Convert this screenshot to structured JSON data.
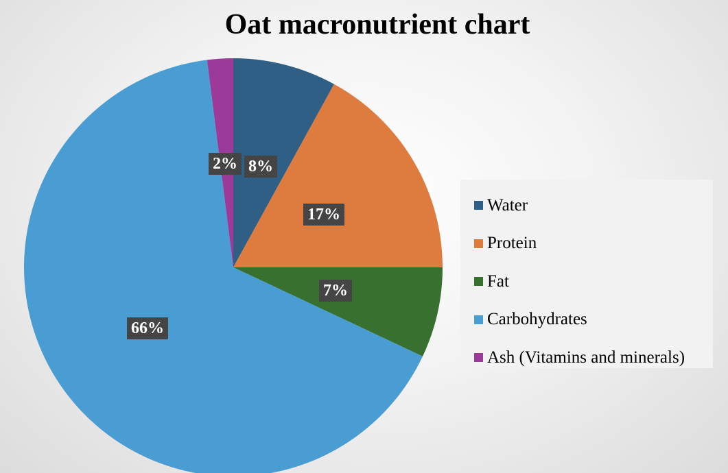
{
  "title": "Oat macronutrient chart",
  "chart_data": {
    "type": "pie",
    "title": "Oat macronutrient chart",
    "legend_position": "right",
    "start_angle_deg": 0,
    "direction": "clockwise",
    "slices": [
      {
        "name": "Water",
        "value": 8,
        "label": "8%",
        "color": "#2f5f85"
      },
      {
        "name": "Protein",
        "value": 17,
        "label": "17%",
        "color": "#de7b3f"
      },
      {
        "name": "Fat",
        "value": 7,
        "label": "7%",
        "color": "#37702f"
      },
      {
        "name": "Carbohydrates",
        "value": 66,
        "label": "66%",
        "color": "#4a9dd3"
      },
      {
        "name": "Ash (Vitamins and minerals)",
        "value": 2,
        "label": "2%",
        "color": "#9b3a98"
      }
    ]
  }
}
